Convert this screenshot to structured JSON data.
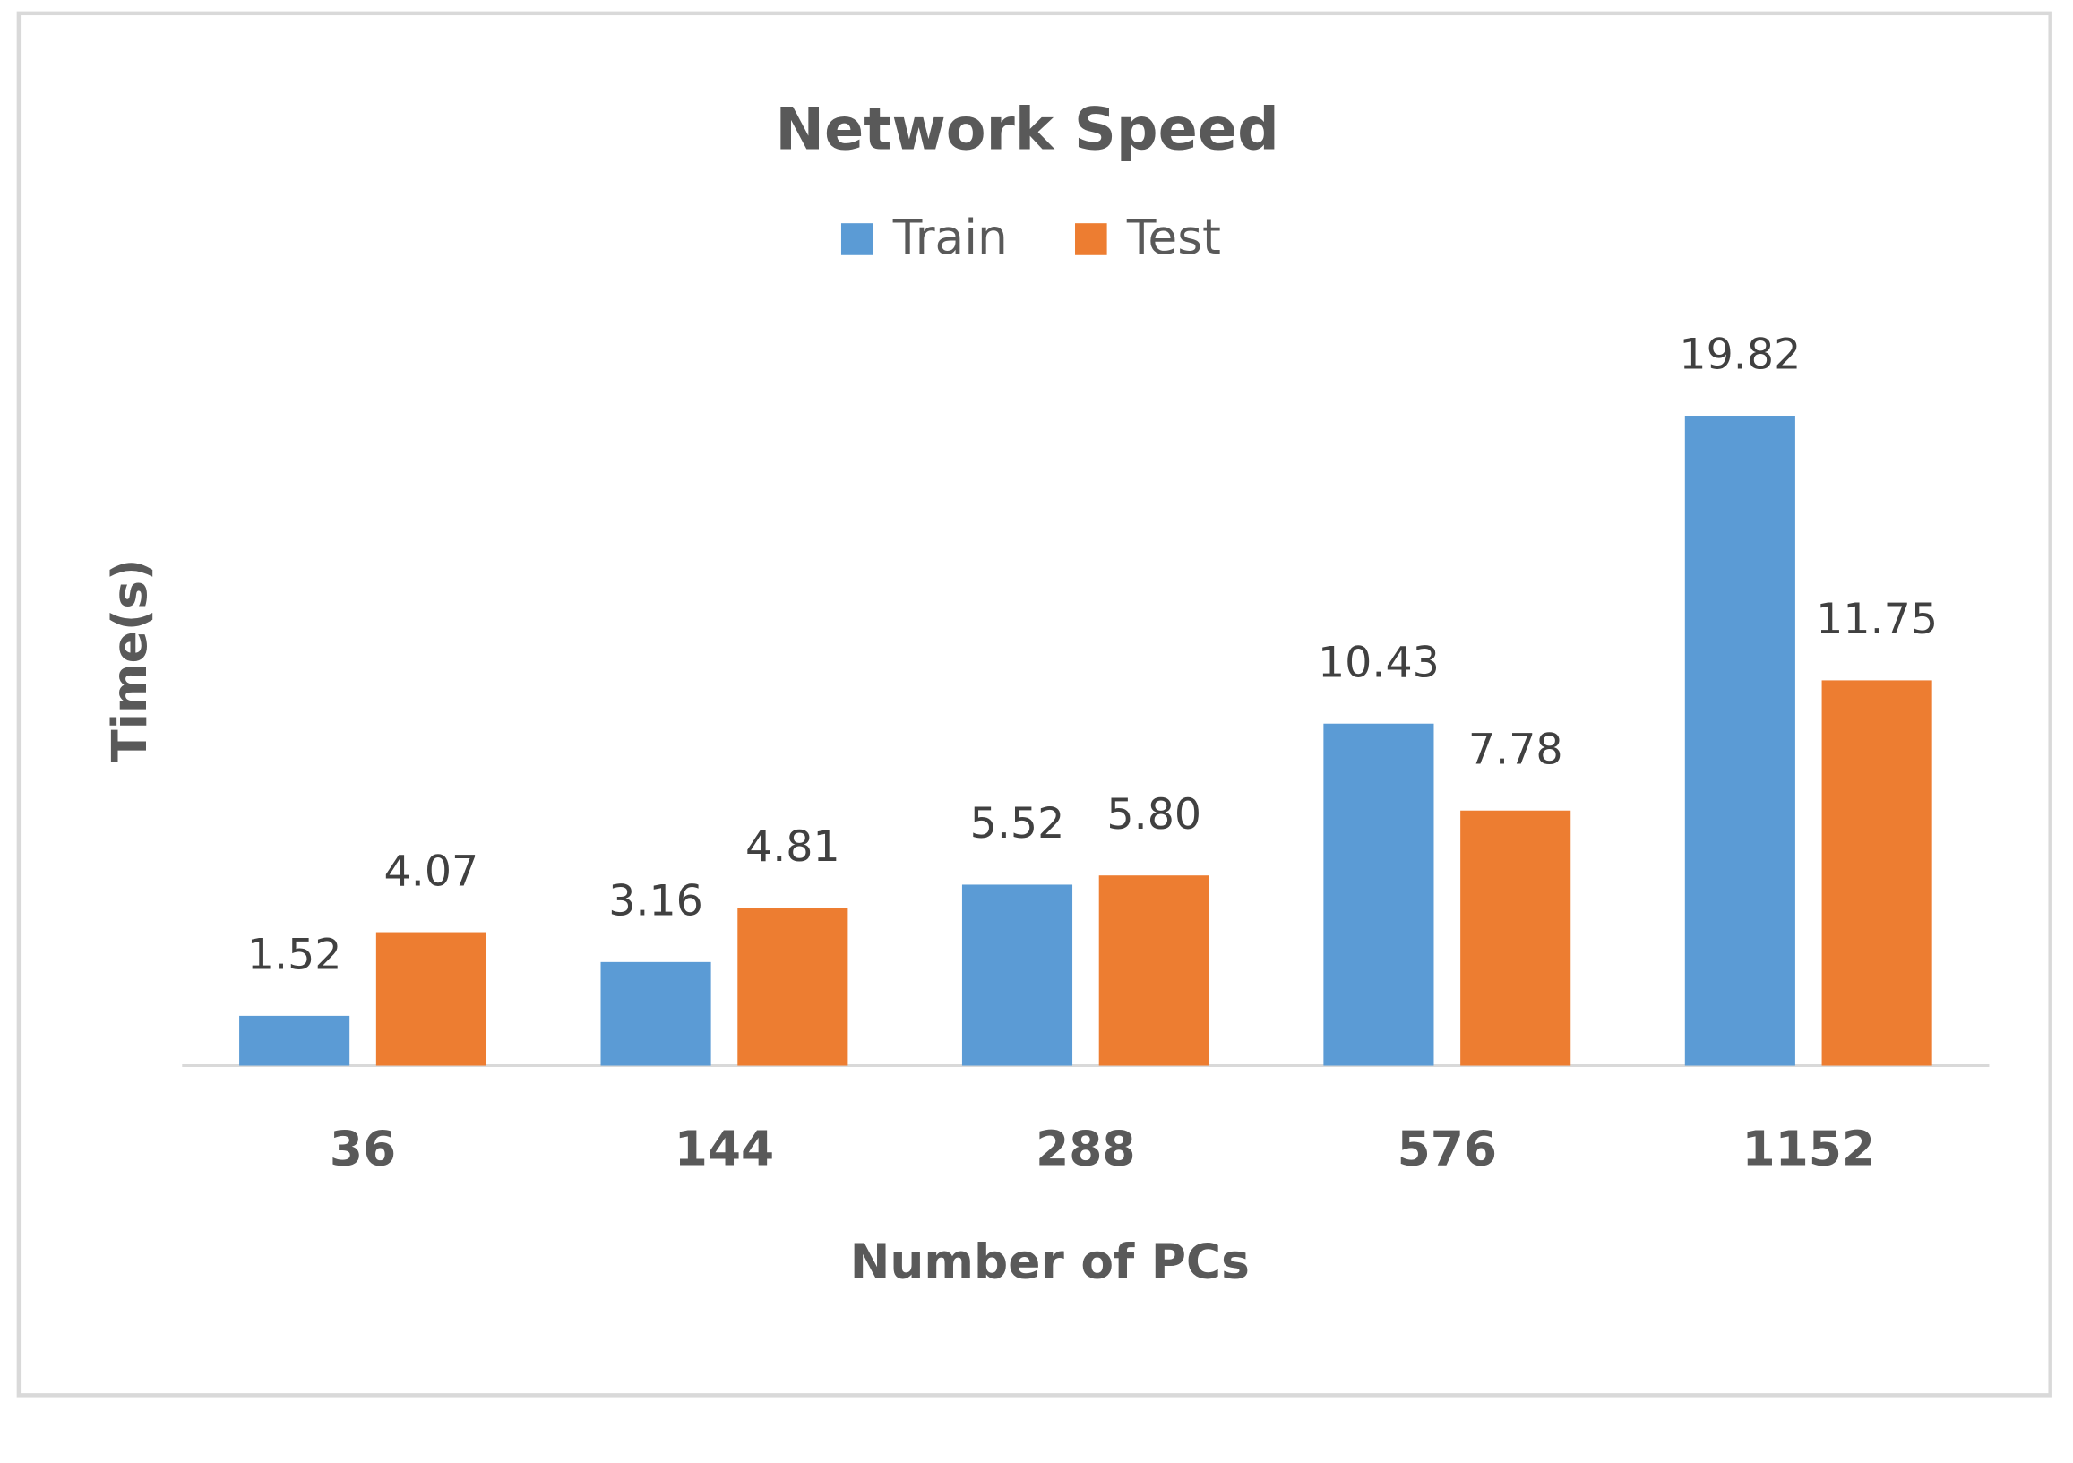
{
  "chart_data": {
    "type": "bar",
    "title": "Network Speed",
    "x_label": "Number of PCs",
    "y_label": "Time(s)",
    "categories": [
      "36",
      "144",
      "288",
      "576",
      "1152"
    ],
    "series": [
      {
        "name": "Train",
        "color": "#5b9bd5",
        "values": [
          1.52,
          3.16,
          5.52,
          10.43,
          19.82
        ]
      },
      {
        "name": "Test",
        "color": "#ed7d31",
        "values": [
          4.07,
          4.81,
          5.8,
          7.78,
          11.75
        ],
        "value_labels": [
          "4.07",
          "4.81",
          "5.80",
          "7.78",
          "11.75"
        ]
      }
    ],
    "ylim": [
      0,
      25
    ],
    "legend": "top"
  }
}
